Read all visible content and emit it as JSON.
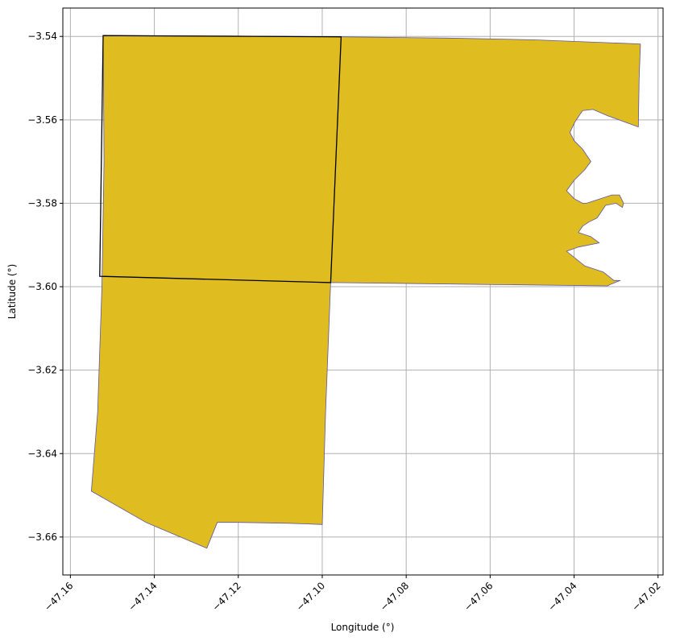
{
  "chart_data": {
    "type": "map",
    "xlabel": "Longitude (°)",
    "ylabel": "Latitude (°)",
    "xlim": [
      -47.1618,
      -47.0188
    ],
    "ylim": [
      -3.6691,
      -3.5332
    ],
    "grid": true,
    "x_ticks": [
      {
        "value": -47.16,
        "label": "−47.16"
      },
      {
        "value": -47.14,
        "label": "−47.14"
      },
      {
        "value": -47.12,
        "label": "−47.12"
      },
      {
        "value": -47.1,
        "label": "−47.10"
      },
      {
        "value": -47.08,
        "label": "−47.08"
      },
      {
        "value": -47.06,
        "label": "−47.06"
      },
      {
        "value": -47.04,
        "label": "−47.04"
      },
      {
        "value": -47.02,
        "label": "−47.02"
      }
    ],
    "y_ticks": [
      {
        "value": -3.54,
        "label": "−3.54"
      },
      {
        "value": -3.56,
        "label": "−3.56"
      },
      {
        "value": -3.58,
        "label": "−3.58"
      },
      {
        "value": -3.6,
        "label": "−3.60"
      },
      {
        "value": -3.62,
        "label": "−3.62"
      },
      {
        "value": -3.64,
        "label": "−3.64"
      },
      {
        "value": -3.66,
        "label": "−3.66"
      }
    ],
    "colors": {
      "fill": "#dfbd21",
      "region_edge": "#5d54a4",
      "highlight_edge": "#000000",
      "grid": "#b0b0b0"
    },
    "region": [
      [
        -47.1522,
        -3.5398
      ],
      [
        -47.1225,
        -3.5399
      ],
      [
        -47.0955,
        -3.5401
      ],
      [
        -47.07,
        -3.5404
      ],
      [
        -47.05,
        -3.5408
      ],
      [
        -47.0242,
        -3.5418
      ],
      [
        -47.0245,
        -3.55
      ],
      [
        -47.0247,
        -3.5617
      ],
      [
        -47.032,
        -3.559
      ],
      [
        -47.0355,
        -3.5575
      ],
      [
        -47.038,
        -3.5578
      ],
      [
        -47.0398,
        -3.5605
      ],
      [
        -47.041,
        -3.563
      ],
      [
        -47.04,
        -3.565
      ],
      [
        -47.038,
        -3.567
      ],
      [
        -47.036,
        -3.57
      ],
      [
        -47.0375,
        -3.572
      ],
      [
        -47.04,
        -3.5745
      ],
      [
        -47.0418,
        -3.577
      ],
      [
        -47.04,
        -3.5789
      ],
      [
        -47.038,
        -3.58
      ],
      [
        -47.037,
        -3.58
      ],
      [
        -47.034,
        -3.579
      ],
      [
        -47.031,
        -3.578
      ],
      [
        -47.0292,
        -3.578
      ],
      [
        -47.0282,
        -3.58
      ],
      [
        -47.0285,
        -3.581
      ],
      [
        -47.03,
        -3.58
      ],
      [
        -47.0325,
        -3.5805
      ],
      [
        -47.0345,
        -3.5835
      ],
      [
        -47.0365,
        -3.5845
      ],
      [
        -47.038,
        -3.5855
      ],
      [
        -47.039,
        -3.587
      ],
      [
        -47.036,
        -3.588
      ],
      [
        -47.034,
        -3.5895
      ],
      [
        -47.039,
        -3.5905
      ],
      [
        -47.0418,
        -3.5915
      ],
      [
        -47.0375,
        -3.595
      ],
      [
        -47.033,
        -3.5965
      ],
      [
        -47.0305,
        -3.5985
      ],
      [
        -47.029,
        -3.5985
      ],
      [
        -47.0315,
        -3.5995
      ],
      [
        -47.032,
        -3.5998
      ],
      [
        -47.098,
        -3.599
      ],
      [
        -47.0992,
        -3.63
      ],
      [
        -47.1,
        -3.657
      ],
      [
        -47.108,
        -3.6567
      ],
      [
        -47.12,
        -3.6565
      ],
      [
        -47.125,
        -3.6565
      ],
      [
        -47.1275,
        -3.6627
      ],
      [
        -47.142,
        -3.6565
      ],
      [
        -47.155,
        -3.649
      ],
      [
        -47.1535,
        -3.63
      ],
      [
        -47.1525,
        -3.6
      ],
      [
        -47.152,
        -3.57
      ]
    ],
    "highlighted_cells": [
      [
        [
          -47.1522,
          -3.5398
        ],
        [
          -47.0955,
          -3.5401
        ],
        [
          -47.098,
          -3.599
        ],
        [
          -47.153,
          -3.5975
        ]
      ]
    ]
  }
}
